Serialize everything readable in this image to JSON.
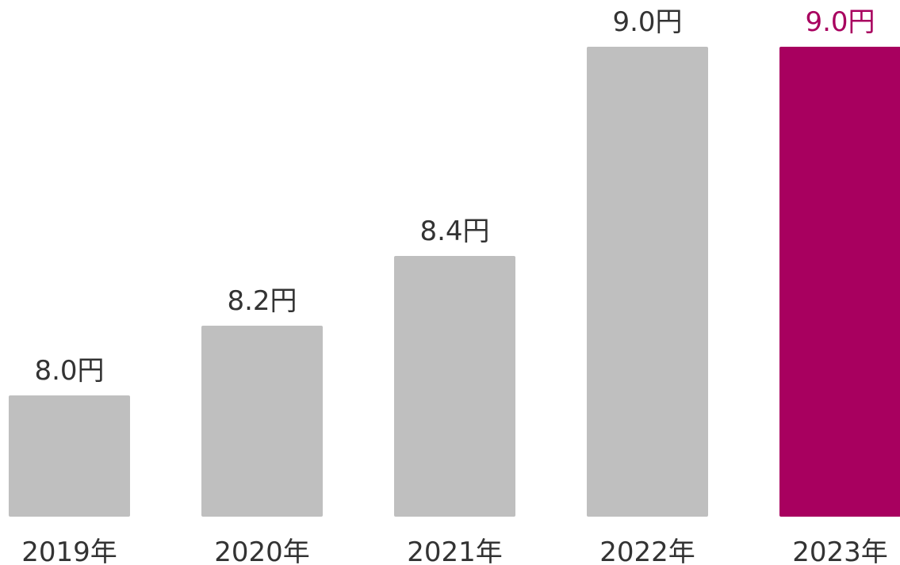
{
  "chart_data": {
    "type": "bar",
    "categories": [
      "2019年",
      "2020年",
      "2021年",
      "2022年",
      "2023年"
    ],
    "values": [
      8.0,
      8.2,
      8.4,
      9.0,
      9.0
    ],
    "value_labels": [
      "8.0円",
      "8.2円",
      "8.4円",
      "9.0円",
      "9.0円"
    ],
    "title": "",
    "xlabel": "",
    "ylabel": "",
    "grid": false,
    "legend": "none",
    "colors": {
      "default_bar": "#bfbfbf",
      "highlight_bar": "#a8005f",
      "default_label": "#333333",
      "highlight_label": "#a8005f"
    },
    "highlight_index": 4
  }
}
